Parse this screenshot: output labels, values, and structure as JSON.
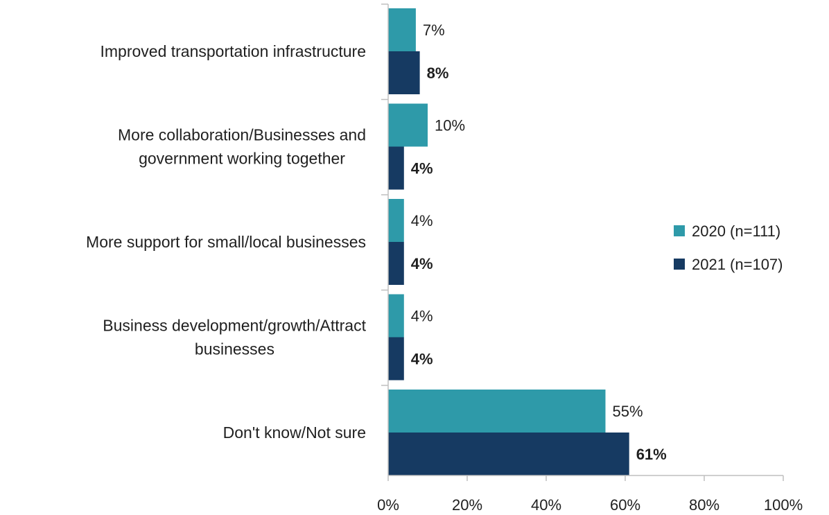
{
  "chart_data": {
    "type": "bar",
    "orientation": "horizontal",
    "categories": [
      [
        "Improved transportation infrastructure"
      ],
      [
        "More collaboration/Businesses and",
        "government working together"
      ],
      [
        "More support for small/local businesses"
      ],
      [
        "Business development/growth/Attract",
        "businesses"
      ],
      [
        "Don't know/Not sure"
      ]
    ],
    "series": [
      {
        "name": "2020 (n=111)",
        "color": "#2e9aa9",
        "values": [
          7,
          10,
          4,
          4,
          55
        ],
        "labels": [
          "7%",
          "10%",
          "4%",
          "4%",
          "55%"
        ],
        "label_bold": false
      },
      {
        "name": "2021 (n=107)",
        "color": "#163a62",
        "values": [
          8,
          4,
          4,
          4,
          61
        ],
        "labels": [
          "8%",
          "4%",
          "4%",
          "4%",
          "61%"
        ],
        "label_bold": true
      }
    ],
    "xlim": [
      0,
      100
    ],
    "xticks": [
      0,
      20,
      40,
      60,
      80,
      100
    ],
    "xtick_labels": [
      "0%",
      "20%",
      "40%",
      "60%",
      "80%",
      "100%"
    ],
    "grid": false,
    "legend_position": "right"
  }
}
